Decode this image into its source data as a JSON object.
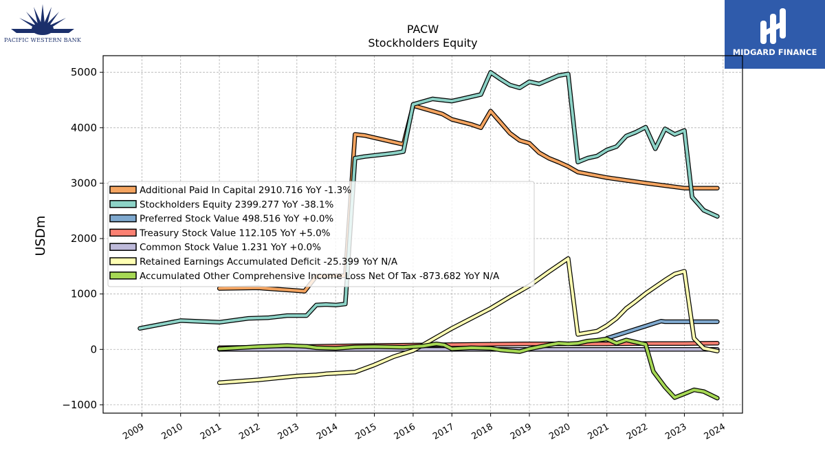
{
  "brand_left": {
    "name": "PACIFIC WESTERN BANK"
  },
  "brand_right": {
    "name": "MIDGARD FINANCE"
  },
  "chart_data": {
    "type": "line",
    "title": "PACW",
    "subtitle": "Stockholders  Equity",
    "ylabel": "USDm",
    "xlabel": "",
    "ylim": [
      -1150,
      5300
    ],
    "xlim": [
      2008.0,
      2024.5
    ],
    "yticks": [
      -1000,
      0,
      1000,
      2000,
      3000,
      4000,
      5000
    ],
    "ytick_labels": [
      "−1000",
      "0",
      "1000",
      "2000",
      "3000",
      "4000",
      "5000"
    ],
    "xticks": [
      2009,
      2010,
      2011,
      2012,
      2013,
      2014,
      2015,
      2016,
      2017,
      2018,
      2019,
      2020,
      2021,
      2022,
      2023,
      2024
    ],
    "xtick_labels": [
      "2009",
      "2010",
      "2011",
      "2012",
      "2013",
      "2014",
      "2015",
      "2016",
      "2017",
      "2018",
      "2019",
      "2020",
      "2021",
      "2022",
      "2023",
      "2024"
    ],
    "grid": true,
    "legend_position": "center-left",
    "series": [
      {
        "name": "Additional Paid In Capital  2910.716 YoY -1.3%",
        "color": "#f4a460",
        "points": [
          [
            2011.0,
            1100
          ],
          [
            2012.0,
            1110
          ],
          [
            2013.0,
            1060
          ],
          [
            2013.2,
            1050
          ],
          [
            2013.5,
            1320
          ],
          [
            2014.0,
            1330
          ],
          [
            2014.25,
            1330
          ],
          [
            2014.5,
            3880
          ],
          [
            2014.75,
            3860
          ],
          [
            2015.0,
            3820
          ],
          [
            2015.5,
            3740
          ],
          [
            2015.75,
            3700
          ],
          [
            2016.0,
            4400
          ],
          [
            2016.25,
            4350
          ],
          [
            2016.75,
            4250
          ],
          [
            2017.0,
            4150
          ],
          [
            2017.5,
            4060
          ],
          [
            2017.75,
            4000
          ],
          [
            2018.0,
            4300
          ],
          [
            2018.25,
            4100
          ],
          [
            2018.5,
            3900
          ],
          [
            2018.75,
            3770
          ],
          [
            2019.0,
            3720
          ],
          [
            2019.25,
            3550
          ],
          [
            2019.5,
            3450
          ],
          [
            2019.75,
            3380
          ],
          [
            2020.0,
            3300
          ],
          [
            2020.25,
            3200
          ],
          [
            2021.0,
            3100
          ],
          [
            2022.0,
            3000
          ],
          [
            2023.0,
            2910
          ],
          [
            2023.85,
            2910
          ]
        ]
      },
      {
        "name": "Stockholders Equity  2399.277 YoY -38.1%",
        "color": "#8dd3c7",
        "points": [
          [
            2008.95,
            380
          ],
          [
            2010.0,
            520
          ],
          [
            2011.0,
            490
          ],
          [
            2011.75,
            560
          ],
          [
            2012.25,
            570
          ],
          [
            2012.75,
            610
          ],
          [
            2013.25,
            610
          ],
          [
            2013.5,
            800
          ],
          [
            2013.75,
            810
          ],
          [
            2014.0,
            800
          ],
          [
            2014.25,
            820
          ],
          [
            2014.5,
            3450
          ],
          [
            2014.75,
            3480
          ],
          [
            2015.0,
            3500
          ],
          [
            2015.5,
            3540
          ],
          [
            2015.75,
            3570
          ],
          [
            2016.0,
            4420
          ],
          [
            2016.5,
            4520
          ],
          [
            2016.75,
            4500
          ],
          [
            2017.0,
            4480
          ],
          [
            2017.25,
            4520
          ],
          [
            2017.75,
            4600
          ],
          [
            2018.0,
            5000
          ],
          [
            2018.25,
            4880
          ],
          [
            2018.5,
            4770
          ],
          [
            2018.75,
            4720
          ],
          [
            2019.0,
            4830
          ],
          [
            2019.25,
            4790
          ],
          [
            2019.75,
            4940
          ],
          [
            2020.0,
            4970
          ],
          [
            2020.25,
            3380
          ],
          [
            2020.5,
            3450
          ],
          [
            2020.75,
            3490
          ],
          [
            2021.0,
            3600
          ],
          [
            2021.25,
            3660
          ],
          [
            2021.5,
            3850
          ],
          [
            2021.75,
            3920
          ],
          [
            2022.0,
            4010
          ],
          [
            2022.25,
            3620
          ],
          [
            2022.5,
            3980
          ],
          [
            2022.75,
            3880
          ],
          [
            2023.0,
            3950
          ],
          [
            2023.2,
            2750
          ],
          [
            2023.5,
            2510
          ],
          [
            2023.85,
            2400
          ]
        ]
      },
      {
        "name": "Preferred Stock Value  498.516 YoY +0.0%",
        "color": "#7fa9cf",
        "points": [
          [
            2021.0,
            200
          ],
          [
            2021.5,
            310
          ],
          [
            2022.0,
            420
          ],
          [
            2022.4,
            510
          ],
          [
            2022.5,
            500
          ],
          [
            2023.0,
            500
          ],
          [
            2023.85,
            500
          ]
        ]
      },
      {
        "name": "Treasury Stock Value  112.105 YoY +5.0%",
        "color": "#fb8072",
        "points": [
          [
            2011.0,
            30
          ],
          [
            2013.0,
            50
          ],
          [
            2015.0,
            70
          ],
          [
            2017.0,
            85
          ],
          [
            2019.0,
            100
          ],
          [
            2021.0,
            100
          ],
          [
            2022.0,
            105
          ],
          [
            2023.0,
            107
          ],
          [
            2023.85,
            112
          ]
        ]
      },
      {
        "name": "Common Stock Value  1.231 YoY +0.0%",
        "color": "#bebada",
        "points": [
          [
            2011.0,
            0
          ],
          [
            2023.85,
            1
          ]
        ]
      },
      {
        "name": "Retained Earnings Accumulated Deficit  -25.399 YoY N/A",
        "color": "#ffffb3",
        "points": [
          [
            2011.0,
            -600
          ],
          [
            2012.0,
            -550
          ],
          [
            2013.0,
            -480
          ],
          [
            2013.5,
            -460
          ],
          [
            2013.75,
            -440
          ],
          [
            2014.0,
            -430
          ],
          [
            2014.5,
            -410
          ],
          [
            2015.0,
            -280
          ],
          [
            2015.5,
            -130
          ],
          [
            2016.0,
            -20
          ],
          [
            2016.5,
            180
          ],
          [
            2017.0,
            380
          ],
          [
            2017.5,
            560
          ],
          [
            2018.0,
            740
          ],
          [
            2018.5,
            950
          ],
          [
            2019.0,
            1150
          ],
          [
            2019.5,
            1400
          ],
          [
            2020.0,
            1640
          ],
          [
            2020.25,
            270
          ],
          [
            2020.75,
            330
          ],
          [
            2021.0,
            430
          ],
          [
            2021.25,
            560
          ],
          [
            2021.5,
            740
          ],
          [
            2021.75,
            870
          ],
          [
            2022.0,
            1010
          ],
          [
            2022.25,
            1130
          ],
          [
            2022.5,
            1250
          ],
          [
            2022.75,
            1360
          ],
          [
            2023.0,
            1410
          ],
          [
            2023.25,
            200
          ],
          [
            2023.5,
            20
          ],
          [
            2023.85,
            -30
          ]
        ]
      },
      {
        "name": "Accumulated Other Comprehensive Income Loss Net Of Tax  -873.682 YoY N/A",
        "color": "#a6d854",
        "points": [
          [
            2011.0,
            10
          ],
          [
            2012.0,
            50
          ],
          [
            2012.75,
            70
          ],
          [
            2013.25,
            55
          ],
          [
            2013.5,
            30
          ],
          [
            2014.0,
            20
          ],
          [
            2014.5,
            45
          ],
          [
            2015.0,
            50
          ],
          [
            2015.75,
            40
          ],
          [
            2016.25,
            60
          ],
          [
            2016.6,
            100
          ],
          [
            2016.8,
            80
          ],
          [
            2017.0,
            10
          ],
          [
            2017.5,
            30
          ],
          [
            2018.0,
            20
          ],
          [
            2018.25,
            -10
          ],
          [
            2018.75,
            -40
          ],
          [
            2019.0,
            10
          ],
          [
            2019.5,
            80
          ],
          [
            2019.75,
            110
          ],
          [
            2020.0,
            100
          ],
          [
            2020.25,
            110
          ],
          [
            2020.5,
            150
          ],
          [
            2020.75,
            165
          ],
          [
            2021.0,
            190
          ],
          [
            2021.25,
            110
          ],
          [
            2021.5,
            170
          ],
          [
            2021.75,
            130
          ],
          [
            2022.0,
            90
          ],
          [
            2022.2,
            -400
          ],
          [
            2022.5,
            -680
          ],
          [
            2022.75,
            -870
          ],
          [
            2023.0,
            -800
          ],
          [
            2023.25,
            -730
          ],
          [
            2023.5,
            -760
          ],
          [
            2023.85,
            -880
          ]
        ]
      }
    ]
  }
}
